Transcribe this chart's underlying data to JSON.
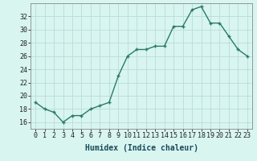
{
  "x": [
    0,
    1,
    2,
    3,
    4,
    5,
    6,
    7,
    8,
    9,
    10,
    11,
    12,
    13,
    14,
    15,
    16,
    17,
    18,
    19,
    20,
    21,
    22,
    23
  ],
  "y": [
    19,
    18,
    17.5,
    16,
    17,
    17,
    18,
    18.5,
    19,
    23,
    26,
    27,
    27,
    27.5,
    27.5,
    30.5,
    30.5,
    33,
    33.5,
    31,
    31,
    29,
    27,
    26
  ],
  "line_color": "#2a7a6a",
  "marker_color": "#2a7a6a",
  "bg_color": "#d8f5f0",
  "grid_color": "#b8ddd8",
  "xlabel": "Humidex (Indice chaleur)",
  "ylim": [
    15,
    34
  ],
  "xlim": [
    -0.5,
    23.5
  ],
  "yticks": [
    16,
    18,
    20,
    22,
    24,
    26,
    28,
    30,
    32
  ],
  "xticks": [
    0,
    1,
    2,
    3,
    4,
    5,
    6,
    7,
    8,
    9,
    10,
    11,
    12,
    13,
    14,
    15,
    16,
    17,
    18,
    19,
    20,
    21,
    22,
    23
  ],
  "xlabel_fontsize": 7,
  "tick_fontsize": 6,
  "line_width": 1.0,
  "marker_size": 2.5
}
